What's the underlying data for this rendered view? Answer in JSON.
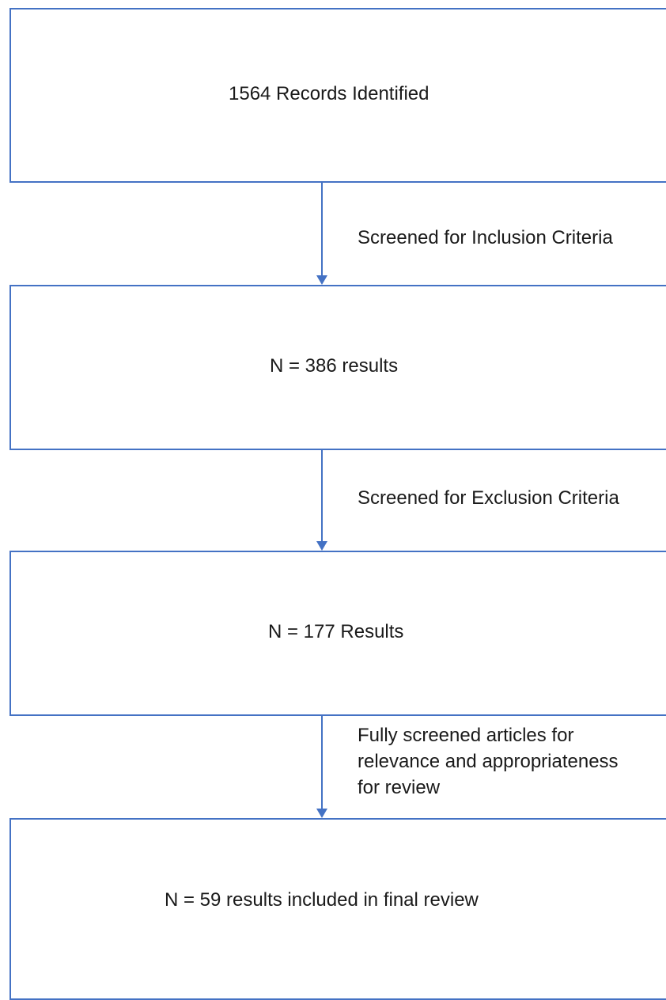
{
  "boxes": [
    {
      "text": "1564 Records Identified"
    },
    {
      "text": "N = 386 results"
    },
    {
      "text": "N = 177 Results"
    },
    {
      "text": "N = 59 results included in final review"
    }
  ],
  "steps": [
    {
      "lines": [
        "Screened for Inclusion Criteria"
      ]
    },
    {
      "lines": [
        "Screened for Exclusion Criteria"
      ]
    },
    {
      "lines": [
        "Fully screened articles for",
        "relevance and appropriateness",
        "for review"
      ]
    }
  ],
  "colors": {
    "box_border": "#4472c4",
    "arrow": "#4472c4",
    "text": "#1a1a1a"
  }
}
